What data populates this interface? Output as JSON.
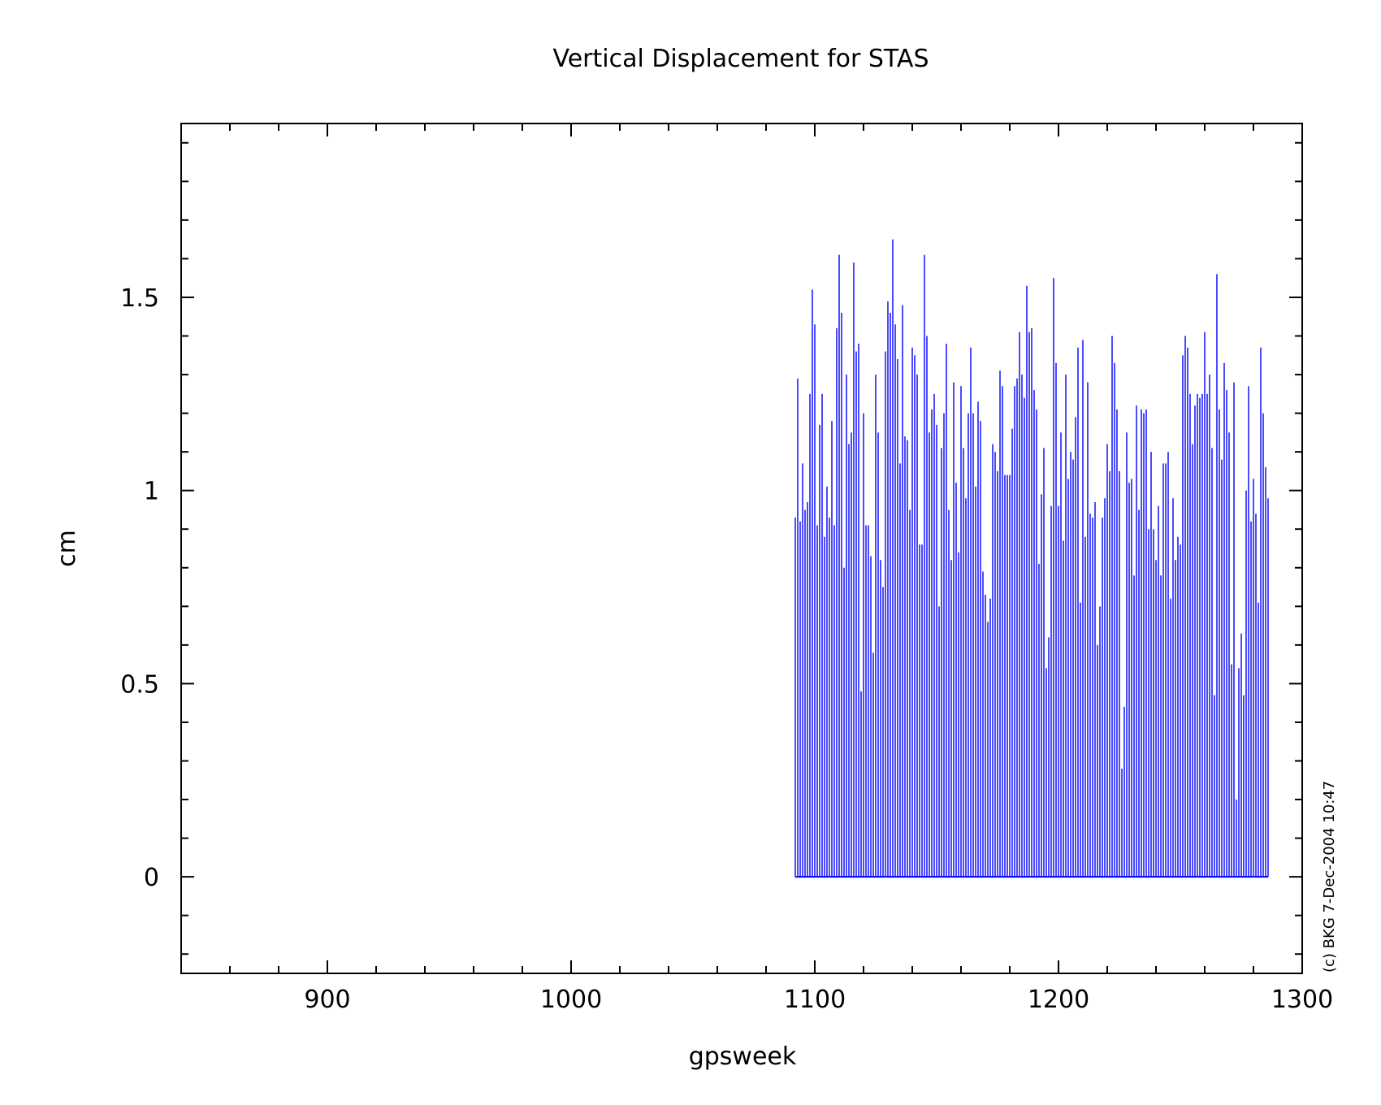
{
  "chart_data": {
    "type": "bar",
    "title": "Vertical Displacement for STAS",
    "xlabel": "gpsweek",
    "ylabel": "cm",
    "xlim": [
      840,
      1300
    ],
    "ylim": [
      -0.25,
      1.95
    ],
    "x_ticks": [
      "900",
      "1000",
      "1100",
      "1200",
      "1300"
    ],
    "y_ticks": [
      "0",
      "0.5",
      "1",
      "1.5"
    ],
    "grid": false,
    "colors": {
      "bars": "#0000ff",
      "axes": "#000000"
    },
    "x_start": 1092,
    "x_step": 1,
    "values": [
      0.93,
      1.29,
      0.92,
      1.07,
      0.95,
      0.97,
      1.25,
      1.52,
      1.43,
      0.91,
      1.17,
      1.25,
      0.88,
      1.01,
      0.93,
      1.18,
      0.91,
      1.42,
      1.61,
      1.46,
      0.8,
      1.3,
      1.12,
      1.15,
      1.59,
      1.36,
      1.38,
      0.48,
      1.2,
      0.91,
      0.91,
      0.83,
      0.58,
      1.3,
      1.15,
      0.82,
      0.75,
      1.36,
      1.49,
      1.46,
      1.65,
      1.43,
      1.34,
      1.07,
      1.48,
      1.14,
      1.13,
      0.95,
      1.37,
      1.35,
      1.3,
      0.86,
      0.86,
      1.61,
      1.4,
      1.15,
      1.21,
      1.25,
      1.17,
      0.7,
      1.11,
      1.2,
      1.38,
      0.95,
      0.82,
      1.28,
      1.02,
      0.84,
      1.27,
      1.11,
      0.98,
      1.2,
      1.37,
      1.2,
      1.01,
      1.23,
      1.18,
      0.79,
      0.73,
      0.66,
      0.72,
      1.12,
      1.1,
      1.05,
      1.31,
      1.27,
      1.04,
      1.04,
      1.04,
      1.16,
      1.27,
      1.29,
      1.41,
      1.3,
      1.24,
      1.53,
      1.41,
      1.42,
      1.26,
      1.21,
      0.81,
      0.99,
      1.11,
      0.54,
      0.62,
      0.96,
      1.55,
      1.33,
      0.96,
      1.15,
      0.87,
      1.3,
      1.03,
      1.1,
      1.08,
      1.19,
      1.37,
      0.71,
      1.39,
      0.88,
      1.28,
      0.94,
      0.93,
      0.97,
      0.6,
      0.7,
      0.93,
      0.98,
      1.12,
      1.05,
      1.4,
      1.33,
      1.21,
      1.05,
      0.28,
      0.44,
      1.15,
      1.02,
      1.03,
      0.78,
      1.22,
      0.95,
      1.21,
      1.2,
      1.21,
      0.9,
      1.1,
      0.9,
      0.82,
      0.96,
      0.78,
      1.07,
      1.07,
      1.1,
      0.72,
      0.98,
      0.82,
      0.88,
      0.86,
      1.35,
      1.4,
      1.37,
      1.25,
      1.12,
      1.22,
      1.25,
      1.24,
      1.25,
      1.41,
      1.25,
      1.3,
      1.11,
      0.47,
      1.56,
      1.21,
      1.08,
      1.33,
      1.26,
      1.15,
      0.55,
      1.28,
      0.2,
      0.54,
      0.63,
      0.47,
      1.0,
      1.27,
      0.92,
      1.03,
      0.94,
      0.71,
      1.37,
      1.2,
      1.06,
      0.98
    ],
    "credit": "(c) BKG 7-Dec-2004 10:47"
  }
}
